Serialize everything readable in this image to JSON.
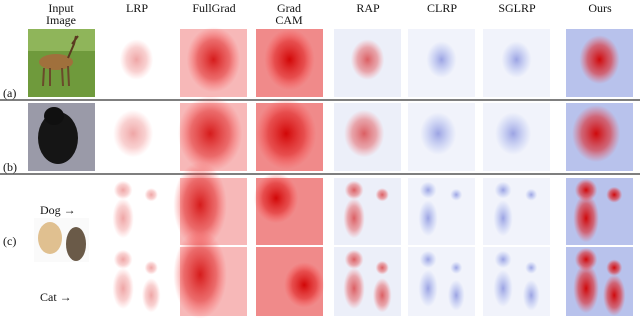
{
  "columns": [
    "Input Image",
    "LRP",
    "FullGrad",
    "Grad CAM",
    "RAP",
    "CLRP",
    "SGLRP",
    "Ours"
  ],
  "rows": [
    "(a)",
    "(b)",
    "(c)"
  ],
  "c_labels": [
    "Dog →",
    "Cat →"
  ]
}
